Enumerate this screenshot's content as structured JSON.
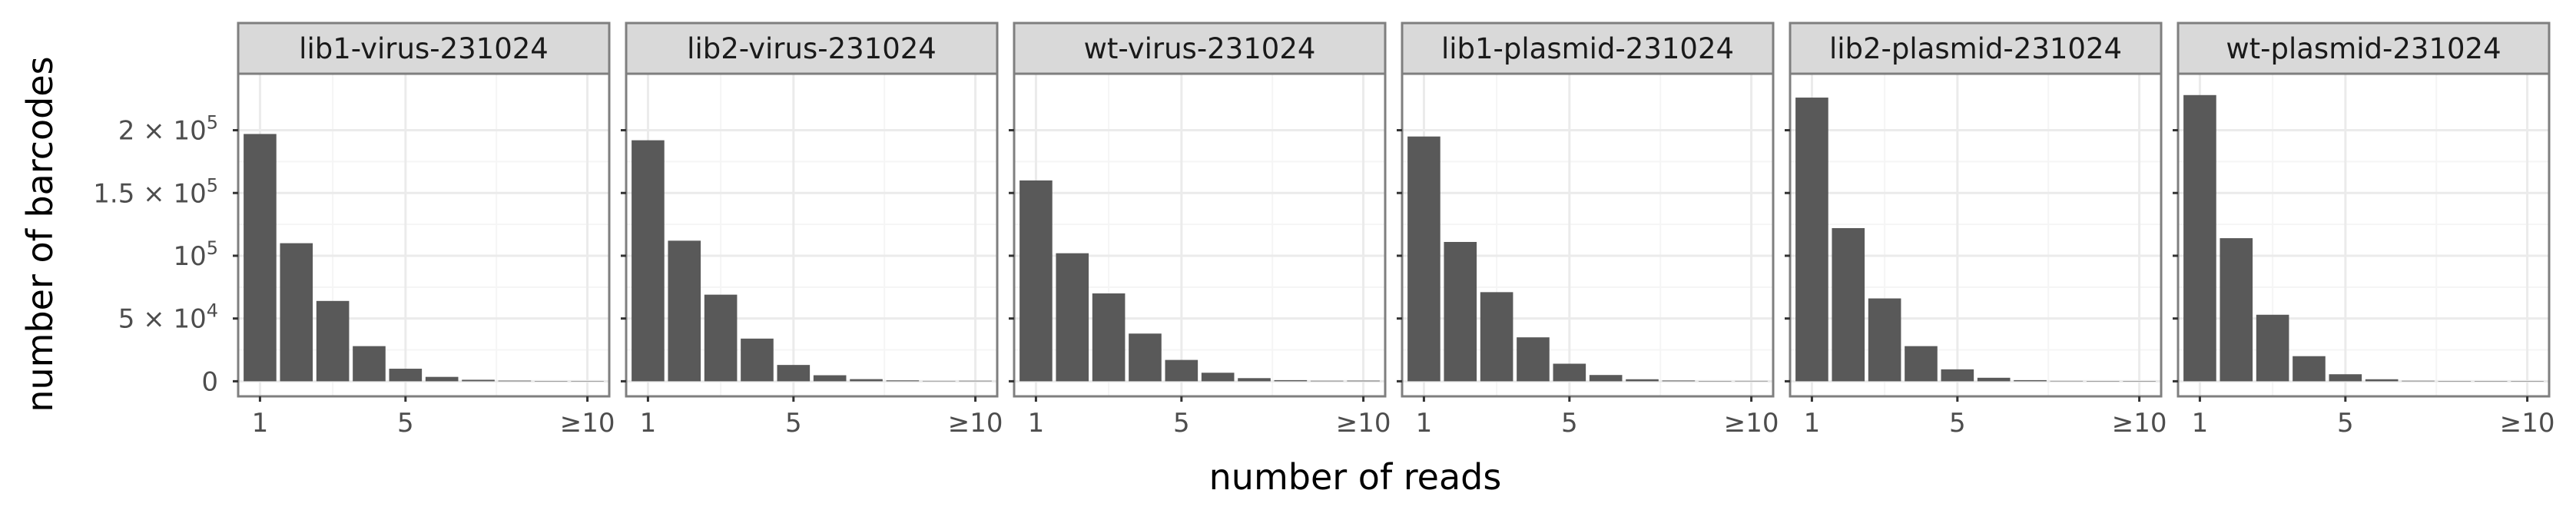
{
  "chart_data": {
    "type": "bar",
    "facet_layout": "single-row",
    "xlabel": "number of reads",
    "ylabel": "number of barcodes",
    "categories": [
      1,
      2,
      3,
      4,
      5,
      6,
      7,
      8,
      9,
      10
    ],
    "x_ticks": [
      {
        "value": 1,
        "label": "1"
      },
      {
        "value": 5,
        "label": "5"
      },
      {
        "value": 10,
        "label": "≥10"
      }
    ],
    "y_ticks": [
      {
        "value": 0,
        "base": "0",
        "exp": ""
      },
      {
        "value": 50000,
        "base": "5 × 10",
        "exp": "4"
      },
      {
        "value": 100000,
        "base": "10",
        "exp": "5"
      },
      {
        "value": 150000,
        "base": "1.5 × 10",
        "exp": "5"
      },
      {
        "value": 200000,
        "base": "2 × 10",
        "exp": "5"
      }
    ],
    "ylim": [
      -12000,
      245000
    ],
    "xlim": [
      0.4,
      10.6
    ],
    "grid": true,
    "colors": {
      "bar": "#595959",
      "panel_border": "#7f7f7f",
      "strip_fill": "#d9d9d9",
      "grid_major": "#ebebeb",
      "grid_minor": "#f5f5f5"
    },
    "panels": [
      {
        "title": "lib1-virus-231024",
        "values": [
          197000,
          110000,
          64000,
          28000,
          10000,
          3500,
          1200,
          500,
          200,
          250
        ]
      },
      {
        "title": "lib2-virus-231024",
        "values": [
          192000,
          112000,
          69000,
          34000,
          13000,
          4800,
          1700,
          700,
          300,
          400
        ]
      },
      {
        "title": "wt-virus-231024",
        "values": [
          160000,
          102000,
          70000,
          38000,
          17000,
          6800,
          2500,
          900,
          400,
          500
        ]
      },
      {
        "title": "lib1-plasmid-231024",
        "values": [
          195000,
          111000,
          71000,
          35000,
          14000,
          5000,
          1600,
          600,
          250,
          300
        ]
      },
      {
        "title": "lib2-plasmid-231024",
        "values": [
          226000,
          122000,
          66000,
          28000,
          9500,
          2800,
          900,
          300,
          100,
          150
        ]
      },
      {
        "title": "wt-plasmid-231024",
        "values": [
          228000,
          114000,
          53000,
          20000,
          5600,
          1600,
          400,
          150,
          50,
          80
        ]
      }
    ]
  }
}
